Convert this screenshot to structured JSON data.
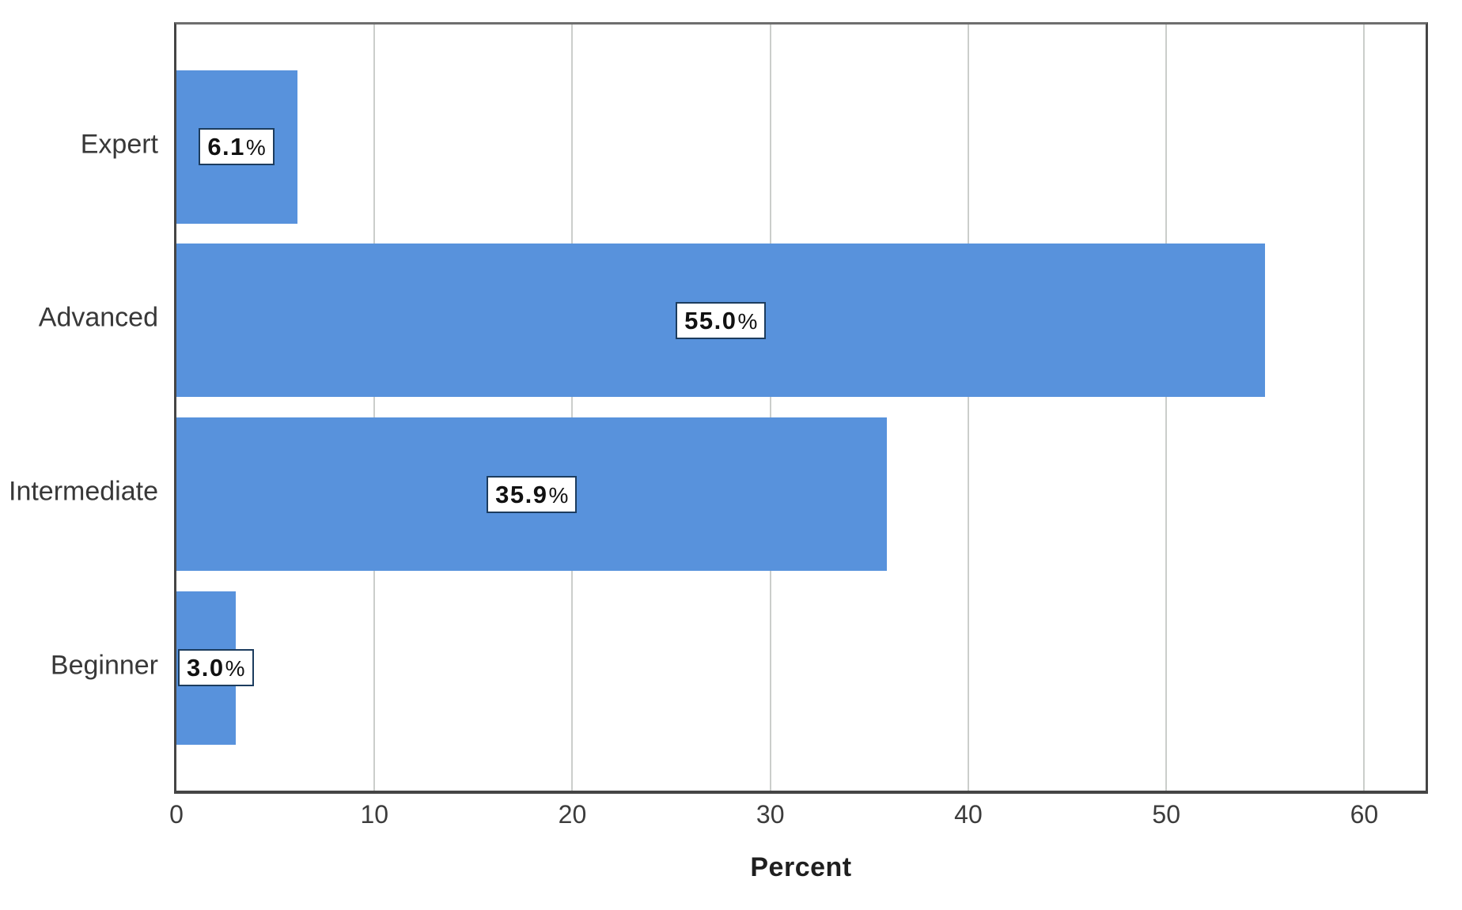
{
  "chart_data": {
    "type": "bar",
    "orientation": "horizontal",
    "title": "",
    "categories": [
      "Expert",
      "Advanced",
      "Intermediate",
      "Beginner"
    ],
    "values": [
      6.1,
      55.0,
      35.9,
      3.0
    ],
    "value_labels": [
      "6.1%",
      "55.0%",
      "35.9%",
      "3.0%"
    ],
    "xlabel": "Percent",
    "x_ticks": [
      0,
      10,
      20,
      30,
      40,
      50,
      60
    ],
    "xlim": [
      0,
      63.1
    ],
    "grid": "vertical",
    "legend": "none",
    "colors": {
      "bar": "#5892DC",
      "gridline": "#CBCECB",
      "plot_border": "#454545",
      "label_box_border": "#1C3C5E",
      "label_box_bg": "#FFFFFF"
    }
  }
}
